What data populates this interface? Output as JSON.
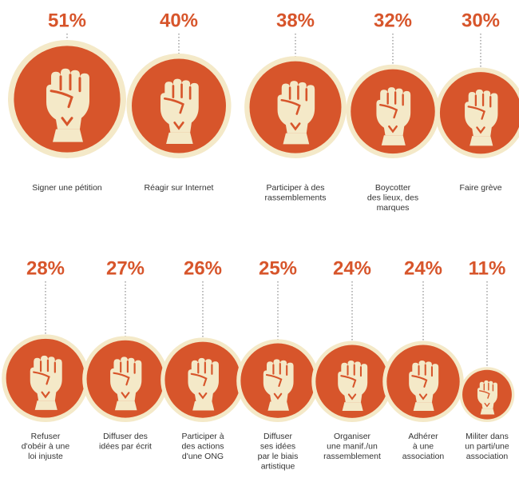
{
  "chart_data": {
    "type": "bubble",
    "title": "",
    "value_unit": "%",
    "colors": {
      "accent": "#d7552b",
      "ring": "#f4e9c8",
      "fist": "#f4e9c8",
      "label": "#333333",
      "connector": "#8a8a8a"
    },
    "icon": "raised-fist-icon",
    "rows": [
      [
        {
          "pct": "51%",
          "value": 51,
          "label": [
            "Signer une pétition"
          ]
        },
        {
          "pct": "40%",
          "value": 40,
          "label": [
            "Réagir sur Internet"
          ]
        },
        {
          "pct": "38%",
          "value": 38,
          "label": [
            "Participer à des",
            "rassemblements"
          ]
        },
        {
          "pct": "32%",
          "value": 32,
          "label": [
            "Boycotter",
            "des lieux, des",
            "marques"
          ]
        },
        {
          "pct": "30%",
          "value": 30,
          "label": [
            "Faire grève"
          ]
        }
      ],
      [
        {
          "pct": "28%",
          "value": 28,
          "label": [
            "Refuser",
            "d'obéir à une",
            "loi injuste"
          ]
        },
        {
          "pct": "27%",
          "value": 27,
          "label": [
            "Diffuser des",
            "idées par écrit"
          ]
        },
        {
          "pct": "26%",
          "value": 26,
          "label": [
            "Participer à",
            "des actions",
            "d'une ONG"
          ]
        },
        {
          "pct": "25%",
          "value": 25,
          "label": [
            "Diffuser",
            "ses idées",
            "par le biais",
            "artistique"
          ]
        },
        {
          "pct": "24%",
          "value": 24,
          "label": [
            "Organiser",
            "une manif./un",
            "rassemblement"
          ]
        },
        {
          "pct": "24%",
          "value": 24,
          "label": [
            "Adhérer",
            "à une",
            "association"
          ]
        },
        {
          "pct": "11%",
          "value": 11,
          "label": [
            "Militer dans",
            "un parti/une",
            "association"
          ]
        }
      ]
    ]
  }
}
